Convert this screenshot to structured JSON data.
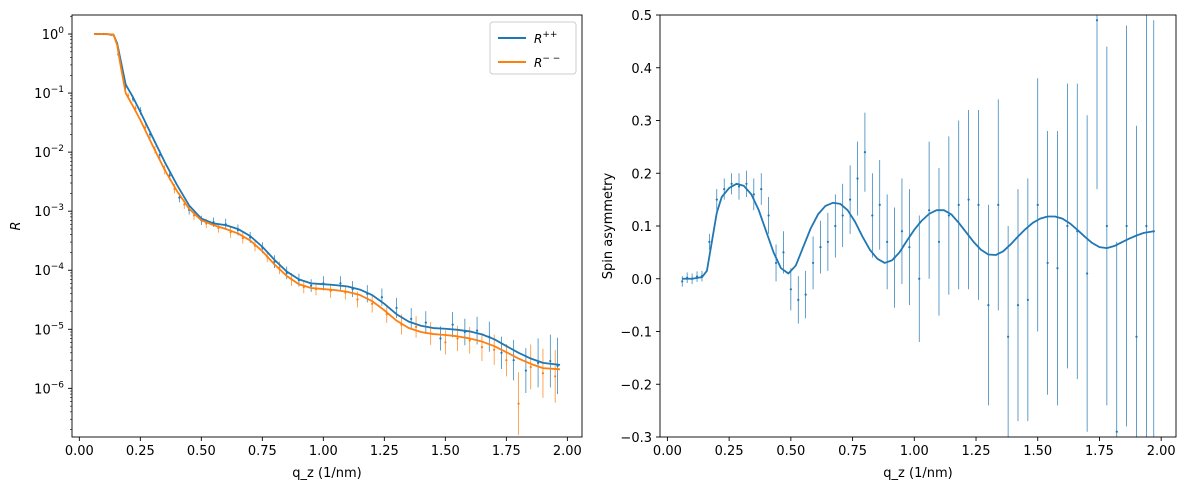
{
  "chart_data": [
    {
      "type": "line",
      "xlabel": "q_z (1/nm)",
      "ylabel": "R",
      "yscale": "log",
      "xlim": [
        -0.03,
        2.06
      ],
      "ylim": [
        1.5e-07,
        2.1
      ],
      "xticks": [
        0.0,
        0.25,
        0.5,
        0.75,
        1.0,
        1.25,
        1.5,
        1.75,
        2.0
      ],
      "xticklabels": [
        "0.00",
        "0.25",
        "0.50",
        "0.75",
        "1.00",
        "1.25",
        "1.50",
        "1.75",
        "2.00"
      ],
      "yticks": [
        1e-06,
        1e-05,
        0.0001,
        0.001,
        0.01,
        0.1,
        1
      ],
      "yticklabels": [
        {
          "base": "10",
          "exp": "−6"
        },
        {
          "base": "10",
          "exp": "−5"
        },
        {
          "base": "10",
          "exp": "−4"
        },
        {
          "base": "10",
          "exp": "−3"
        },
        {
          "base": "10",
          "exp": "−2"
        },
        {
          "base": "10",
          "exp": "−1"
        },
        {
          "base": "10",
          "exp": "0"
        }
      ],
      "legend": {
        "placement": "upper-right",
        "entries": [
          {
            "base": "R",
            "sup": "++",
            "color": "#1f77b4"
          },
          {
            "base": "R",
            "sup": "− −",
            "color": "#ff7f0e"
          }
        ]
      },
      "series": [
        {
          "color": "#1f77b4",
          "x": [
            0.06,
            0.1,
            0.14,
            0.155,
            0.17,
            0.19,
            0.22,
            0.25,
            0.3,
            0.35,
            0.4,
            0.45,
            0.5,
            0.55,
            0.6,
            0.65,
            0.7,
            0.75,
            0.8,
            0.85,
            0.9,
            0.95,
            1.0,
            1.05,
            1.1,
            1.15,
            1.2,
            1.25,
            1.3,
            1.35,
            1.4,
            1.45,
            1.5,
            1.55,
            1.6,
            1.65,
            1.7,
            1.75,
            1.8,
            1.85,
            1.9,
            1.97
          ],
          "y": [
            1.0,
            1.0,
            0.98,
            0.7,
            0.35,
            0.14,
            0.085,
            0.048,
            0.018,
            0.0068,
            0.0028,
            0.00125,
            0.00075,
            0.00062,
            0.00058,
            0.0005,
            0.00038,
            0.00025,
            0.00015,
            9.5e-05,
            7e-05,
            6e-05,
            5.8e-05,
            5.6e-05,
            5.3e-05,
            4.7e-05,
            3.8e-05,
            2.7e-05,
            1.8e-05,
            1.35e-05,
            1.15e-05,
            1.05e-05,
            1.02e-05,
            9.8e-06,
            9.2e-06,
            8.2e-06,
            6.8e-06,
            5.2e-06,
            4e-06,
            3.2e-06,
            2.7e-06,
            2.5e-06
          ]
        },
        {
          "color": "#ff7f0e",
          "x": [
            0.06,
            0.1,
            0.14,
            0.155,
            0.17,
            0.19,
            0.22,
            0.25,
            0.3,
            0.35,
            0.4,
            0.45,
            0.5,
            0.55,
            0.6,
            0.65,
            0.7,
            0.75,
            0.8,
            0.85,
            0.9,
            0.95,
            1.0,
            1.05,
            1.1,
            1.15,
            1.2,
            1.25,
            1.3,
            1.35,
            1.4,
            1.45,
            1.5,
            1.55,
            1.6,
            1.65,
            1.7,
            1.75,
            1.8,
            1.85,
            1.9,
            1.97
          ],
          "y": [
            1.0,
            1.0,
            0.98,
            0.65,
            0.28,
            0.1,
            0.06,
            0.035,
            0.013,
            0.005,
            0.0022,
            0.0011,
            0.0007,
            0.00058,
            0.0005,
            0.00042,
            0.00032,
            0.00021,
            0.000125,
            8e-05,
            5.8e-05,
            5e-05,
            4.8e-05,
            4.6e-05,
            4.3e-05,
            3.8e-05,
            3e-05,
            2.1e-05,
            1.4e-05,
            1.05e-05,
            9e-06,
            8.3e-06,
            8e-06,
            7.6e-06,
            7e-06,
            6.2e-06,
            5.2e-06,
            4.1e-06,
            3.2e-06,
            2.6e-06,
            2.2e-06,
            2.1e-06
          ]
        }
      ],
      "error_points": [
        {
          "color": "#1f77b4",
          "x": [
            0.07,
            0.1,
            0.13,
            0.16,
            0.19,
            0.22,
            0.25,
            0.29,
            0.33,
            0.37,
            0.41,
            0.45,
            0.5,
            0.55,
            0.6,
            0.65,
            0.7,
            0.75,
            0.8,
            0.85,
            0.9,
            0.95,
            1.0,
            1.07,
            1.12,
            1.18,
            1.24,
            1.3,
            1.36,
            1.42,
            1.48,
            1.53,
            1.58,
            1.63,
            1.68,
            1.73,
            1.78,
            1.83,
            1.88,
            1.93,
            1.96
          ],
          "y": [
            1.0,
            1.0,
            0.97,
            0.45,
            0.13,
            0.08,
            0.05,
            0.02,
            0.009,
            0.004,
            0.0017,
            0.00105,
            0.0007,
            0.00065,
            0.0006,
            0.00048,
            0.00036,
            0.00024,
            0.00014,
            9e-05,
            6.8e-05,
            5.5e-05,
            6e-05,
            6e-05,
            4.8e-05,
            4e-05,
            3.5e-05,
            2.3e-05,
            1.5e-05,
            1.3e-05,
            7e-06,
            1.2e-05,
            9e-06,
            9.5e-06,
            7.5e-06,
            4e-06,
            3e-06,
            2e-06,
            2.7e-06,
            2.9e-06,
            2.4e-06
          ],
          "err": [
            0.01,
            0.01,
            0.01,
            0.02,
            0.03,
            0.03,
            0.04,
            0.04,
            0.05,
            0.05,
            0.05,
            0.05,
            0.05,
            0.05,
            0.06,
            0.06,
            0.06,
            0.06,
            0.07,
            0.07,
            0.07,
            0.07,
            0.08,
            0.08,
            0.09,
            0.1,
            0.1,
            0.12,
            0.13,
            0.14,
            0.15,
            0.16,
            0.17,
            0.18,
            0.2,
            0.22,
            0.3,
            0.35,
            0.4,
            0.45,
            0.5
          ]
        },
        {
          "color": "#ff7f0e",
          "x": [
            0.08,
            0.11,
            0.14,
            0.17,
            0.2,
            0.23,
            0.27,
            0.31,
            0.35,
            0.39,
            0.43,
            0.47,
            0.52,
            0.57,
            0.62,
            0.67,
            0.72,
            0.77,
            0.82,
            0.87,
            0.92,
            0.97,
            1.03,
            1.09,
            1.14,
            1.2,
            1.26,
            1.32,
            1.38,
            1.44,
            1.5,
            1.55,
            1.6,
            1.65,
            1.7,
            1.75,
            1.8,
            1.85,
            1.9,
            1.95
          ],
          "y": [
            1.0,
            1.0,
            0.95,
            0.3,
            0.09,
            0.055,
            0.026,
            0.011,
            0.005,
            0.0024,
            0.0013,
            0.00085,
            0.00062,
            0.00052,
            0.00044,
            0.00035,
            0.00026,
            0.00017,
            0.00011,
            7e-05,
            5.2e-05,
            4.8e-05,
            4.5e-05,
            4.2e-05,
            3.2e-05,
            2.7e-05,
            1.8e-05,
            1.2e-05,
            1.1e-05,
            8.5e-06,
            6e-06,
            7e-06,
            6.5e-06,
            5e-06,
            4.5e-06,
            3e-06,
            5.5e-07,
            2.3e-06,
            1.8e-06,
            1.6e-06
          ],
          "err": [
            0.01,
            0.01,
            0.01,
            0.02,
            0.03,
            0.03,
            0.04,
            0.04,
            0.05,
            0.05,
            0.05,
            0.05,
            0.05,
            0.05,
            0.06,
            0.06,
            0.06,
            0.06,
            0.07,
            0.07,
            0.07,
            0.07,
            0.08,
            0.08,
            0.09,
            0.1,
            0.1,
            0.12,
            0.13,
            0.14,
            0.15,
            0.16,
            0.17,
            0.18,
            0.2,
            0.22,
            0.6,
            0.35,
            0.4,
            0.45
          ]
        }
      ]
    },
    {
      "type": "line",
      "xlabel": "q_z (1/nm)",
      "ylabel": "Spin asymmetry",
      "xlim": [
        -0.03,
        2.06
      ],
      "ylim": [
        -0.3,
        0.5
      ],
      "xticks": [
        0.0,
        0.25,
        0.5,
        0.75,
        1.0,
        1.25,
        1.5,
        1.75,
        2.0
      ],
      "xticklabels": [
        "0.00",
        "0.25",
        "0.50",
        "0.75",
        "1.00",
        "1.25",
        "1.50",
        "1.75",
        "2.00"
      ],
      "yticks": [
        -0.3,
        -0.2,
        -0.1,
        0.0,
        0.1,
        0.2,
        0.3,
        0.4,
        0.5
      ],
      "yticklabels": [
        "−0.3",
        "−0.2",
        "−0.1",
        "0.0",
        "0.1",
        "0.2",
        "0.3",
        "0.4",
        "0.5"
      ],
      "series": [
        {
          "color": "#1f77b4",
          "x": [
            0.06,
            0.1,
            0.14,
            0.16,
            0.18,
            0.2,
            0.22,
            0.25,
            0.28,
            0.31,
            0.34,
            0.37,
            0.4,
            0.43,
            0.46,
            0.49,
            0.52,
            0.55,
            0.58,
            0.61,
            0.64,
            0.67,
            0.7,
            0.73,
            0.76,
            0.79,
            0.82,
            0.85,
            0.88,
            0.91,
            0.94,
            0.97,
            1.0,
            1.03,
            1.06,
            1.09,
            1.12,
            1.15,
            1.18,
            1.21,
            1.24,
            1.27,
            1.3,
            1.33,
            1.36,
            1.39,
            1.42,
            1.45,
            1.48,
            1.51,
            1.54,
            1.57,
            1.6,
            1.63,
            1.66,
            1.69,
            1.72,
            1.75,
            1.78,
            1.81,
            1.84,
            1.87,
            1.9,
            1.93,
            1.97
          ],
          "y": [
            0.0,
            0.0,
            0.003,
            0.015,
            0.07,
            0.125,
            0.155,
            0.172,
            0.18,
            0.176,
            0.16,
            0.13,
            0.09,
            0.05,
            0.02,
            0.01,
            0.025,
            0.06,
            0.095,
            0.122,
            0.138,
            0.144,
            0.142,
            0.13,
            0.108,
            0.08,
            0.055,
            0.038,
            0.03,
            0.035,
            0.05,
            0.072,
            0.093,
            0.11,
            0.123,
            0.13,
            0.13,
            0.122,
            0.106,
            0.088,
            0.07,
            0.055,
            0.046,
            0.045,
            0.052,
            0.065,
            0.08,
            0.094,
            0.106,
            0.114,
            0.118,
            0.118,
            0.114,
            0.105,
            0.093,
            0.08,
            0.068,
            0.06,
            0.058,
            0.062,
            0.069,
            0.076,
            0.082,
            0.087,
            0.09
          ]
        }
      ],
      "error_points": [
        {
          "color": "#1f77b4",
          "x": [
            0.06,
            0.08,
            0.1,
            0.12,
            0.14,
            0.17,
            0.2,
            0.23,
            0.26,
            0.29,
            0.32,
            0.35,
            0.38,
            0.41,
            0.44,
            0.47,
            0.5,
            0.53,
            0.56,
            0.59,
            0.62,
            0.65,
            0.68,
            0.71,
            0.74,
            0.77,
            0.8,
            0.83,
            0.86,
            0.89,
            0.92,
            0.95,
            0.98,
            1.02,
            1.06,
            1.1,
            1.14,
            1.18,
            1.22,
            1.26,
            1.3,
            1.34,
            1.38,
            1.42,
            1.46,
            1.5,
            1.54,
            1.58,
            1.62,
            1.66,
            1.7,
            1.74,
            1.78,
            1.82,
            1.86,
            1.9,
            1.94,
            1.97
          ],
          "y": [
            -0.005,
            0.002,
            0.0,
            0.004,
            0.005,
            0.07,
            0.15,
            0.17,
            0.18,
            0.175,
            0.18,
            0.16,
            0.17,
            0.12,
            0.03,
            0.05,
            -0.02,
            -0.04,
            -0.03,
            0.03,
            0.06,
            0.07,
            0.1,
            0.12,
            0.15,
            0.19,
            0.24,
            0.12,
            0.14,
            0.07,
            0.04,
            0.09,
            0.06,
            0.0,
            0.13,
            0.07,
            0.12,
            0.14,
            0.15,
            0.14,
            -0.05,
            0.14,
            -0.11,
            -0.05,
            -0.04,
            0.14,
            0.03,
            0.02,
            0.1,
            0.09,
            0.01,
            0.49,
            0.1,
            -0.29,
            0.1,
            -0.11,
            0.1,
            0.09
          ],
          "err": [
            0.01,
            0.01,
            0.01,
            0.01,
            0.01,
            0.015,
            0.02,
            0.02,
            0.02,
            0.025,
            0.025,
            0.03,
            0.03,
            0.035,
            0.035,
            0.04,
            0.04,
            0.045,
            0.045,
            0.05,
            0.05,
            0.055,
            0.06,
            0.06,
            0.065,
            0.07,
            0.075,
            0.08,
            0.085,
            0.09,
            0.095,
            0.1,
            0.11,
            0.12,
            0.13,
            0.14,
            0.15,
            0.16,
            0.17,
            0.18,
            0.19,
            0.2,
            0.21,
            0.22,
            0.23,
            0.24,
            0.25,
            0.26,
            0.27,
            0.28,
            0.3,
            0.32,
            0.34,
            0.36,
            0.38,
            0.4,
            0.4,
            0.4
          ]
        }
      ]
    }
  ]
}
